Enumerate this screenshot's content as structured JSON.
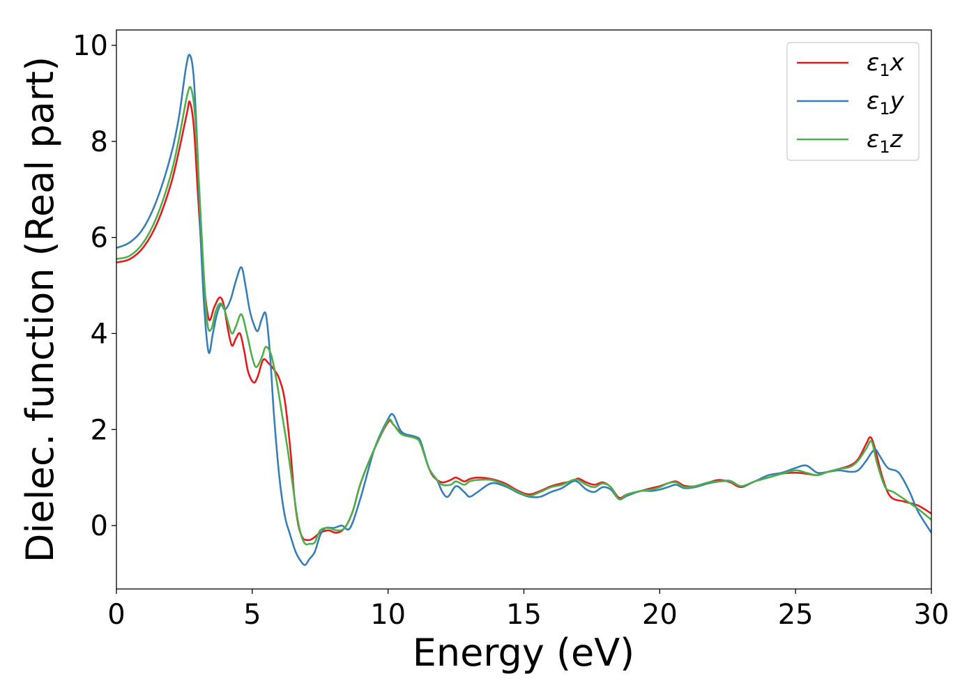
{
  "chart_data": {
    "type": "line",
    "title": "",
    "xlabel": "Energy (eV)",
    "ylabel": "Dielec. function (Real part)",
    "xlim": [
      0,
      30
    ],
    "ylim": [
      -1.32,
      10.32
    ],
    "xticks": [
      0,
      5,
      10,
      15,
      20,
      25,
      30
    ],
    "yticks": [
      0,
      2,
      4,
      6,
      8,
      10
    ],
    "grid": false,
    "legend_position": "top-right",
    "series": [
      {
        "name": "ε₁x",
        "legend_main": "ε",
        "legend_sub": "1",
        "legend_tail": "x",
        "color": "#e41a1c",
        "x": [
          0,
          0.5,
          1.0,
          1.5,
          2.0,
          2.3,
          2.6,
          2.7,
          2.85,
          3.0,
          3.2,
          3.4,
          3.6,
          3.8,
          3.95,
          4.1,
          4.25,
          4.4,
          4.55,
          4.7,
          4.85,
          5.05,
          5.2,
          5.4,
          5.6,
          5.8,
          6.0,
          6.2,
          6.4,
          6.55,
          6.7,
          6.85,
          7.0,
          7.2,
          7.5,
          7.8,
          8.1,
          8.4,
          8.7,
          9.0,
          9.5,
          10.0,
          10.2,
          10.5,
          11.0,
          11.2,
          11.5,
          11.7,
          12.0,
          12.3,
          12.5,
          12.8,
          13.0,
          13.3,
          13.8,
          14.3,
          14.8,
          15.2,
          15.6,
          16.0,
          16.4,
          16.8,
          17.0,
          17.3,
          17.6,
          17.9,
          18.2,
          18.5,
          18.8,
          19.3,
          19.7,
          20.0,
          20.3,
          20.6,
          20.9,
          21.3,
          21.8,
          22.2,
          22.6,
          23.0,
          23.5,
          24.0,
          24.5,
          25.0,
          25.4,
          25.8,
          26.2,
          26.6,
          27.0,
          27.3,
          27.6,
          27.75,
          27.9,
          28.2,
          28.5,
          29.0,
          29.5,
          30.0
        ],
        "y": [
          5.48,
          5.55,
          5.8,
          6.3,
          7.1,
          7.8,
          8.6,
          8.82,
          8.3,
          6.9,
          5.2,
          4.3,
          4.55,
          4.75,
          4.6,
          4.1,
          3.75,
          3.9,
          4.0,
          3.65,
          3.2,
          2.98,
          3.1,
          3.45,
          3.38,
          3.25,
          3.05,
          2.6,
          1.6,
          0.6,
          0.0,
          -0.25,
          -0.3,
          -0.28,
          -0.15,
          -0.1,
          -0.15,
          -0.05,
          0.3,
          0.9,
          1.6,
          2.15,
          2.1,
          1.92,
          1.85,
          1.7,
          1.2,
          1.0,
          0.9,
          0.95,
          1.0,
          0.92,
          0.97,
          1.0,
          0.97,
          0.88,
          0.72,
          0.65,
          0.72,
          0.82,
          0.88,
          0.93,
          0.98,
          0.9,
          0.85,
          0.9,
          0.8,
          0.58,
          0.65,
          0.72,
          0.78,
          0.82,
          0.88,
          0.92,
          0.83,
          0.82,
          0.9,
          0.95,
          0.9,
          0.8,
          0.92,
          1.0,
          1.08,
          1.1,
          1.08,
          1.05,
          1.12,
          1.18,
          1.25,
          1.38,
          1.7,
          1.84,
          1.65,
          1.0,
          0.6,
          0.5,
          0.42,
          0.25
        ]
      },
      {
        "name": "ε₁y",
        "legend_main": "ε",
        "legend_sub": "1",
        "legend_tail": "y",
        "color": "#377eb8",
        "x": [
          0,
          0.5,
          1.0,
          1.5,
          2.0,
          2.3,
          2.55,
          2.7,
          2.85,
          3.0,
          3.1,
          3.25,
          3.4,
          3.55,
          3.7,
          3.85,
          4.0,
          4.2,
          4.4,
          4.6,
          4.75,
          4.9,
          5.05,
          5.2,
          5.35,
          5.5,
          5.65,
          5.8,
          6.0,
          6.2,
          6.4,
          6.6,
          6.8,
          6.95,
          7.1,
          7.3,
          7.5,
          7.7,
          8.0,
          8.3,
          8.6,
          9.0,
          9.5,
          10.0,
          10.2,
          10.5,
          11.0,
          11.2,
          11.5,
          11.8,
          12.0,
          12.2,
          12.5,
          12.8,
          13.0,
          13.3,
          13.8,
          14.3,
          14.8,
          15.2,
          15.6,
          16.0,
          16.4,
          16.8,
          17.0,
          17.3,
          17.6,
          17.9,
          18.2,
          18.5,
          18.8,
          19.3,
          19.7,
          20.0,
          20.3,
          20.6,
          20.9,
          21.3,
          21.8,
          22.2,
          22.6,
          23.0,
          23.5,
          24.0,
          24.5,
          25.0,
          25.4,
          25.8,
          26.2,
          26.6,
          27.0,
          27.3,
          27.6,
          27.8,
          27.95,
          28.1,
          28.4,
          28.8,
          29.2,
          29.5,
          30.0
        ],
        "y": [
          5.78,
          5.9,
          6.2,
          6.8,
          7.7,
          8.5,
          9.5,
          9.8,
          9.3,
          7.6,
          6.0,
          4.4,
          3.6,
          4.0,
          4.4,
          4.6,
          4.5,
          4.7,
          5.1,
          5.38,
          5.0,
          4.5,
          4.2,
          4.05,
          4.3,
          4.4,
          3.6,
          2.3,
          1.0,
          0.2,
          -0.2,
          -0.55,
          -0.75,
          -0.82,
          -0.7,
          -0.55,
          -0.2,
          -0.05,
          -0.05,
          0.0,
          -0.05,
          0.6,
          1.6,
          2.22,
          2.3,
          1.95,
          1.85,
          1.75,
          1.2,
          0.95,
          0.7,
          0.6,
          0.82,
          0.7,
          0.6,
          0.7,
          0.88,
          0.82,
          0.68,
          0.6,
          0.6,
          0.7,
          0.78,
          0.92,
          0.9,
          0.75,
          0.7,
          0.8,
          0.75,
          0.55,
          0.62,
          0.72,
          0.72,
          0.75,
          0.8,
          0.85,
          0.78,
          0.8,
          0.88,
          0.92,
          0.93,
          0.82,
          0.92,
          1.05,
          1.1,
          1.2,
          1.25,
          1.1,
          1.12,
          1.15,
          1.12,
          1.15,
          1.35,
          1.52,
          1.58,
          1.45,
          1.2,
          1.1,
          0.7,
          0.3,
          -0.15
        ]
      },
      {
        "name": "ε₁z",
        "legend_main": "ε",
        "legend_sub": "1",
        "legend_tail": "z",
        "color": "#4daf4a",
        "x": [
          0,
          0.5,
          1.0,
          1.5,
          2.0,
          2.3,
          2.6,
          2.75,
          2.9,
          3.05,
          3.2,
          3.35,
          3.5,
          3.65,
          3.8,
          3.95,
          4.1,
          4.25,
          4.4,
          4.6,
          4.8,
          5.0,
          5.15,
          5.35,
          5.5,
          5.7,
          5.9,
          6.1,
          6.3,
          6.5,
          6.65,
          6.8,
          6.95,
          7.1,
          7.3,
          7.5,
          7.8,
          8.1,
          8.4,
          8.7,
          9.0,
          9.5,
          10.0,
          10.2,
          10.5,
          11.0,
          11.2,
          11.5,
          11.8,
          12.0,
          12.3,
          12.5,
          12.8,
          13.0,
          13.3,
          13.8,
          14.3,
          14.8,
          15.2,
          15.6,
          16.0,
          16.4,
          16.8,
          17.0,
          17.3,
          17.6,
          17.9,
          18.2,
          18.5,
          18.8,
          19.3,
          19.7,
          20.0,
          20.3,
          20.6,
          20.9,
          21.3,
          21.8,
          22.2,
          22.6,
          23.0,
          23.5,
          24.0,
          24.5,
          25.0,
          25.4,
          25.8,
          26.2,
          26.6,
          27.0,
          27.3,
          27.6,
          27.8,
          28.0,
          28.3,
          28.6,
          29.0,
          29.5,
          30.0
        ],
        "y": [
          5.55,
          5.62,
          5.9,
          6.45,
          7.3,
          8.05,
          8.95,
          9.1,
          8.5,
          7.0,
          5.4,
          4.2,
          4.1,
          4.45,
          4.62,
          4.55,
          4.25,
          4.0,
          4.15,
          4.4,
          4.0,
          3.5,
          3.3,
          3.5,
          3.72,
          3.55,
          3.0,
          2.3,
          1.6,
          0.8,
          0.2,
          -0.2,
          -0.38,
          -0.38,
          -0.35,
          -0.1,
          -0.05,
          -0.1,
          -0.05,
          0.3,
          0.9,
          1.6,
          2.18,
          2.1,
          1.9,
          1.82,
          1.7,
          1.2,
          0.95,
          0.85,
          0.85,
          0.92,
          0.85,
          0.92,
          0.95,
          0.95,
          0.85,
          0.7,
          0.62,
          0.7,
          0.8,
          0.85,
          0.95,
          0.95,
          0.85,
          0.8,
          0.88,
          0.8,
          0.55,
          0.65,
          0.72,
          0.75,
          0.8,
          0.88,
          0.9,
          0.8,
          0.82,
          0.9,
          0.92,
          0.92,
          0.82,
          0.92,
          1.0,
          1.08,
          1.15,
          1.1,
          1.05,
          1.12,
          1.18,
          1.22,
          1.35,
          1.6,
          1.75,
          1.3,
          0.8,
          0.7,
          0.55,
          0.35,
          0.12
        ]
      }
    ]
  }
}
